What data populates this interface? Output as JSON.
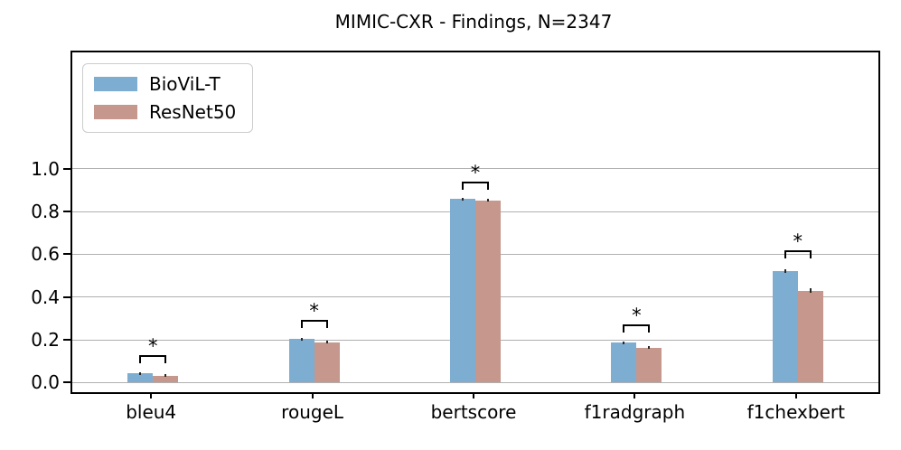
{
  "chart_data": {
    "type": "bar",
    "title": "MIMIC-CXR - Findings, N=2347",
    "categories": [
      "bleu4",
      "rougeL",
      "bertscore",
      "f1radgraph",
      "f1chexbert"
    ],
    "series": [
      {
        "name": "BioViL-T",
        "color": "#7eadd2",
        "values": [
          0.042,
          0.203,
          0.858,
          0.186,
          0.521
        ],
        "errors": [
          0.004,
          0.005,
          0.003,
          0.006,
          0.008
        ]
      },
      {
        "name": "ResNet50",
        "color": "#c5978d",
        "values": [
          0.033,
          0.189,
          0.852,
          0.163,
          0.43
        ],
        "errors": [
          0.004,
          0.005,
          0.003,
          0.006,
          0.01
        ]
      }
    ],
    "yticks": [
      0.0,
      0.2,
      0.4,
      0.6,
      0.8,
      1.0
    ],
    "ytick_labels": [
      "0.0",
      "0.2",
      "0.4",
      "0.6",
      "0.8",
      "1.0"
    ],
    "ylim": [
      -0.045,
      1.545
    ],
    "grid": true,
    "grid_color": "#b0b0b0",
    "legend_position": "upper left",
    "significance": {
      "symbol": "*",
      "bracket_values": [
        0.129,
        0.294,
        0.941,
        0.273,
        0.62
      ],
      "applies_to_categories": [
        "bleu4",
        "rougeL",
        "bertscore",
        "f1radgraph",
        "f1chexbert"
      ]
    }
  }
}
